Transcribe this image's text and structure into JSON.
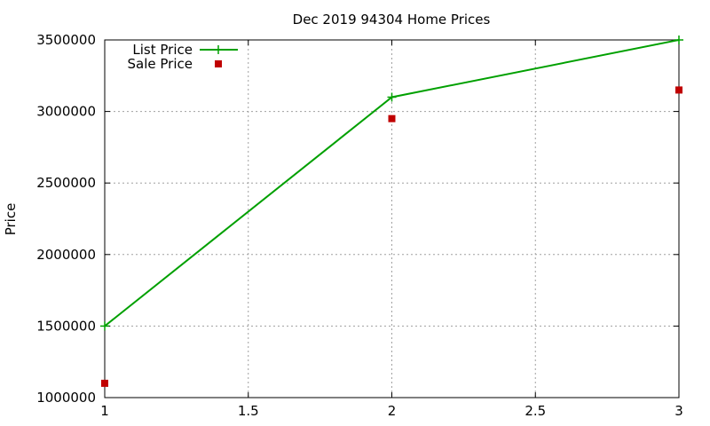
{
  "chart_data": {
    "type": "line",
    "title": "Dec 2019 94304 Home Prices",
    "xlabel": "",
    "ylabel": "Price",
    "xlim": [
      1,
      3
    ],
    "ylim": [
      1000000,
      3500000
    ],
    "xticks": [
      1,
      1.5,
      2,
      2.5,
      3
    ],
    "xtick_labels": [
      "1",
      "1.5",
      "2",
      "2.5",
      "3"
    ],
    "yticks": [
      1000000,
      1500000,
      2000000,
      2500000,
      3000000,
      3500000
    ],
    "ytick_labels": [
      "1000000",
      "1500000",
      "2000000",
      "2500000",
      "3000000",
      "3500000"
    ],
    "grid": true,
    "legend_position": "top-left",
    "series": [
      {
        "name": "List Price",
        "style": "line-plus",
        "color": "#00a000",
        "x": [
          1,
          2,
          3
        ],
        "y": [
          1500000,
          3100000,
          3500000
        ]
      },
      {
        "name": "Sale Price",
        "style": "square",
        "color": "#c00000",
        "x": [
          1,
          2,
          3
        ],
        "y": [
          1100000,
          2950000,
          3150000
        ]
      }
    ]
  }
}
